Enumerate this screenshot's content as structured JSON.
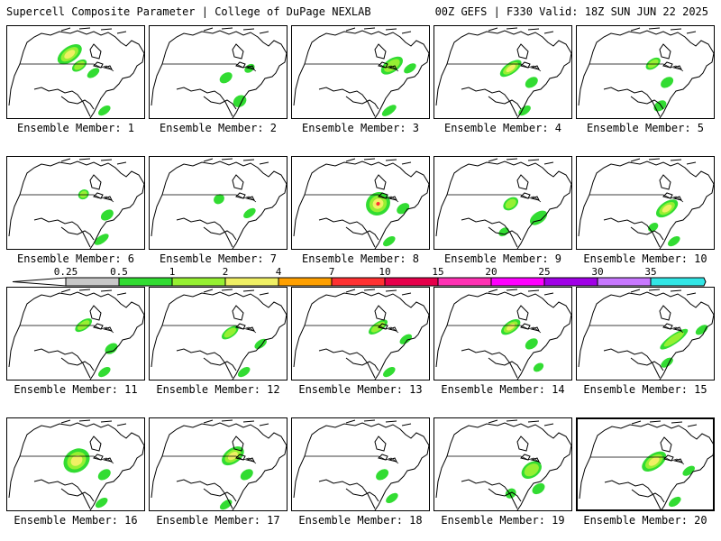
{
  "header": {
    "title_left": "Supercell Composite Parameter | College of DuPage NEXLAB",
    "title_right": "00Z GEFS | F330 Valid: 18Z SUN JUN 22 2025"
  },
  "colorbar": {
    "labels": [
      "0.25",
      "0.5",
      "1",
      "2",
      "4",
      "7",
      "10",
      "15",
      "20",
      "25",
      "30",
      "35"
    ],
    "colors": [
      "#c8c8c8",
      "#32dc32",
      "#96f032",
      "#f0f064",
      "#ffa000",
      "#ff3232",
      "#e6004b",
      "#ff32b4",
      "#ff00ff",
      "#a000e6",
      "#c878ff",
      "#32e6e6"
    ]
  },
  "members": [
    {
      "label": "Ensemble Member: 1",
      "blobs": [
        [
          0.45,
          0.3,
          0.1,
          0.08,
          3
        ],
        [
          0.52,
          0.42,
          0.06,
          0.05,
          2
        ],
        [
          0.62,
          0.5,
          0.05,
          0.04,
          1
        ],
        [
          0.7,
          0.9,
          0.05,
          0.04,
          1
        ]
      ]
    },
    {
      "label": "Ensemble Member: 2",
      "blobs": [
        [
          0.55,
          0.55,
          0.05,
          0.05,
          1
        ],
        [
          0.65,
          0.8,
          0.05,
          0.06,
          1
        ],
        [
          0.72,
          0.45,
          0.04,
          0.04,
          1
        ]
      ]
    },
    {
      "label": "Ensemble Member: 3",
      "blobs": [
        [
          0.72,
          0.42,
          0.09,
          0.07,
          2
        ],
        [
          0.85,
          0.45,
          0.05,
          0.04,
          1
        ],
        [
          0.7,
          0.9,
          0.06,
          0.04,
          1
        ]
      ]
    },
    {
      "label": "Ensemble Member: 4",
      "blobs": [
        [
          0.55,
          0.45,
          0.09,
          0.06,
          3
        ],
        [
          0.7,
          0.6,
          0.05,
          0.05,
          1
        ],
        [
          0.65,
          0.9,
          0.05,
          0.04,
          1
        ]
      ]
    },
    {
      "label": "Ensemble Member: 5",
      "blobs": [
        [
          0.55,
          0.4,
          0.06,
          0.05,
          2
        ],
        [
          0.65,
          0.6,
          0.05,
          0.05,
          1
        ],
        [
          0.6,
          0.85,
          0.05,
          0.05,
          1
        ]
      ]
    },
    {
      "label": "Ensemble Member: 6",
      "blobs": [
        [
          0.55,
          0.4,
          0.04,
          0.05,
          2
        ],
        [
          0.72,
          0.62,
          0.05,
          0.05,
          1
        ],
        [
          0.68,
          0.88,
          0.06,
          0.04,
          1
        ]
      ]
    },
    {
      "label": "Ensemble Member: 7",
      "blobs": [
        [
          0.5,
          0.45,
          0.04,
          0.05,
          1
        ],
        [
          0.72,
          0.6,
          0.05,
          0.04,
          1
        ]
      ]
    },
    {
      "label": "Ensemble Member: 8",
      "blobs": [
        [
          0.62,
          0.5,
          0.09,
          0.12,
          4
        ],
        [
          0.8,
          0.55,
          0.05,
          0.05,
          1
        ],
        [
          0.7,
          0.9,
          0.05,
          0.04,
          1
        ]
      ]
    },
    {
      "label": "Ensemble Member: 9",
      "blobs": [
        [
          0.55,
          0.5,
          0.06,
          0.06,
          2
        ],
        [
          0.75,
          0.65,
          0.07,
          0.06,
          1
        ],
        [
          0.5,
          0.8,
          0.04,
          0.04,
          1
        ]
      ]
    },
    {
      "label": "Ensemble Member: 10",
      "blobs": [
        [
          0.65,
          0.55,
          0.09,
          0.07,
          3
        ],
        [
          0.55,
          0.75,
          0.04,
          0.04,
          1
        ],
        [
          0.7,
          0.9,
          0.05,
          0.04,
          1
        ]
      ]
    },
    {
      "label": "Ensemble Member: 11",
      "blobs": [
        [
          0.55,
          0.4,
          0.07,
          0.05,
          2
        ],
        [
          0.75,
          0.65,
          0.05,
          0.05,
          1
        ],
        [
          0.7,
          0.9,
          0.05,
          0.04,
          1
        ]
      ]
    },
    {
      "label": "Ensemble Member: 12",
      "blobs": [
        [
          0.58,
          0.48,
          0.07,
          0.05,
          2
        ],
        [
          0.8,
          0.6,
          0.05,
          0.04,
          1
        ],
        [
          0.68,
          0.9,
          0.05,
          0.04,
          1
        ]
      ]
    },
    {
      "label": "Ensemble Member: 13",
      "blobs": [
        [
          0.62,
          0.42,
          0.08,
          0.05,
          2
        ],
        [
          0.82,
          0.55,
          0.05,
          0.04,
          1
        ],
        [
          0.7,
          0.9,
          0.05,
          0.04,
          1
        ]
      ]
    },
    {
      "label": "Ensemble Member: 14",
      "blobs": [
        [
          0.55,
          0.42,
          0.08,
          0.06,
          3
        ],
        [
          0.7,
          0.6,
          0.05,
          0.05,
          1
        ],
        [
          0.75,
          0.85,
          0.04,
          0.04,
          1
        ]
      ]
    },
    {
      "label": "Ensemble Member: 15",
      "blobs": [
        [
          0.7,
          0.55,
          0.12,
          0.05,
          2
        ],
        [
          0.9,
          0.45,
          0.05,
          0.04,
          1
        ],
        [
          0.65,
          0.8,
          0.05,
          0.04,
          1
        ]
      ]
    },
    {
      "label": "Ensemble Member: 16",
      "blobs": [
        [
          0.5,
          0.45,
          0.1,
          0.12,
          3
        ],
        [
          0.7,
          0.6,
          0.05,
          0.05,
          1
        ],
        [
          0.68,
          0.9,
          0.05,
          0.04,
          1
        ]
      ]
    },
    {
      "label": "Ensemble Member: 17",
      "blobs": [
        [
          0.6,
          0.4,
          0.09,
          0.08,
          3
        ],
        [
          0.7,
          0.6,
          0.05,
          0.05,
          1
        ],
        [
          0.55,
          0.92,
          0.05,
          0.04,
          1
        ]
      ]
    },
    {
      "label": "Ensemble Member: 18",
      "blobs": [
        [
          0.65,
          0.6,
          0.05,
          0.05,
          1
        ],
        [
          0.72,
          0.85,
          0.05,
          0.04,
          1
        ]
      ]
    },
    {
      "label": "Ensemble Member: 19",
      "blobs": [
        [
          0.7,
          0.55,
          0.08,
          0.08,
          2
        ],
        [
          0.75,
          0.75,
          0.05,
          0.05,
          1
        ],
        [
          0.55,
          0.8,
          0.04,
          0.05,
          1
        ]
      ]
    },
    {
      "label": "Ensemble Member: 20",
      "blobs": [
        [
          0.55,
          0.45,
          0.1,
          0.08,
          3
        ],
        [
          0.8,
          0.55,
          0.05,
          0.04,
          1
        ],
        [
          0.7,
          0.88,
          0.05,
          0.04,
          1
        ]
      ]
    }
  ]
}
